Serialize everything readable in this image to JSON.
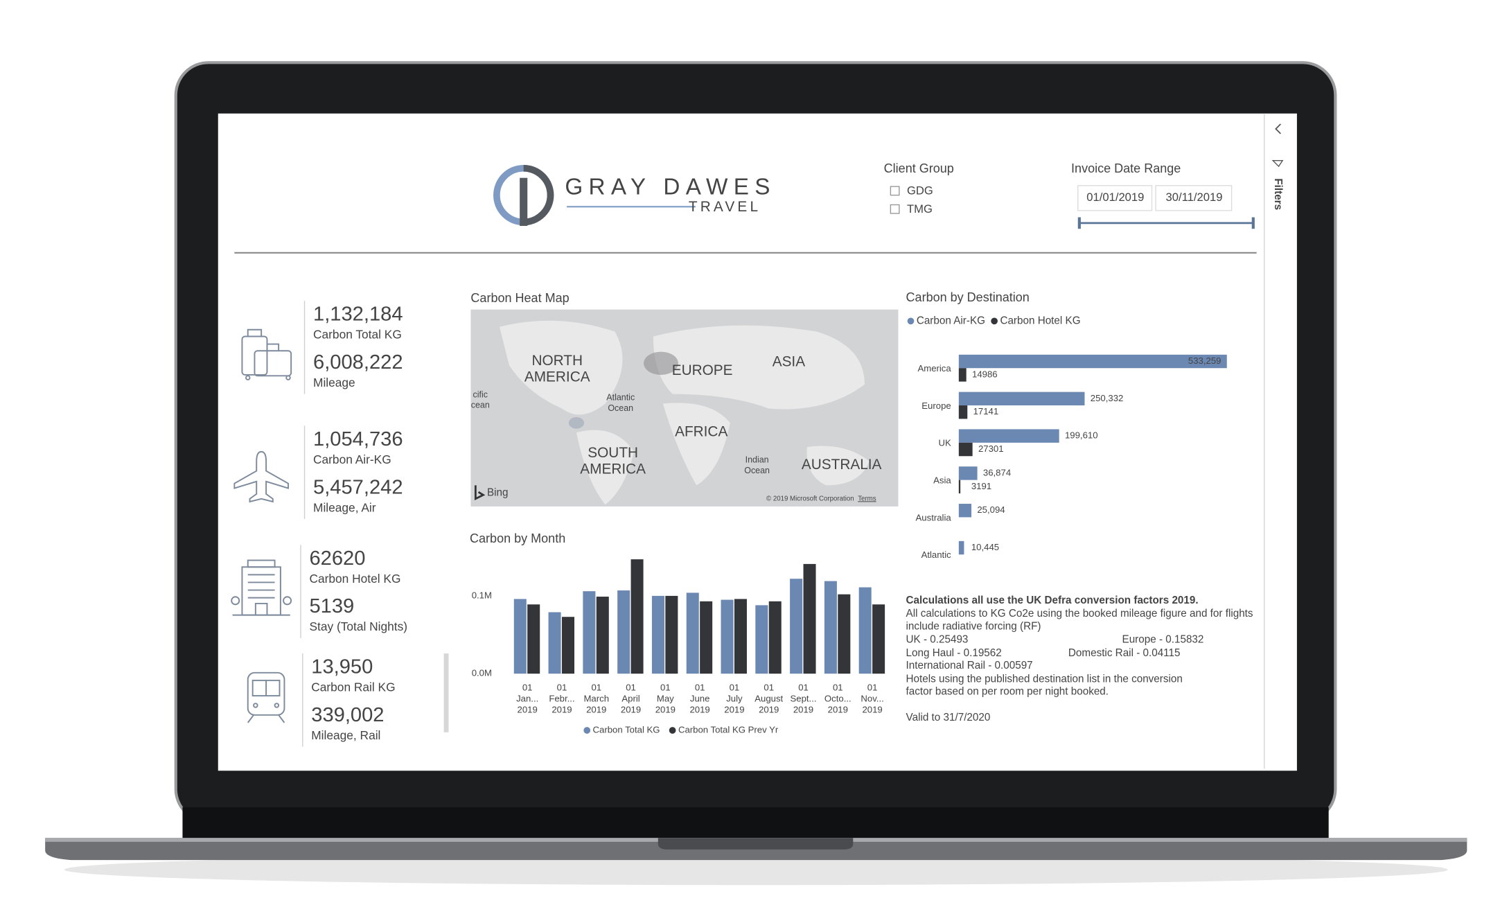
{
  "header": {
    "logo_main": "GRAY DAWES",
    "logo_sub": "TRAVEL",
    "client_group": {
      "title": "Client Group",
      "options": [
        "GDG",
        "TMG"
      ]
    },
    "date_range": {
      "title": "Invoice Date Range",
      "start": "01/01/2019",
      "end": "30/11/2019"
    },
    "filters": "Filters"
  },
  "kpis": [
    {
      "value": "1,132,184",
      "label": "Carbon Total KG",
      "value2": "6,008,222",
      "label2": "Mileage"
    },
    {
      "value": "1,054,736",
      "label": "Carbon Air-KG",
      "value2": "5,457,242",
      "label2": "Mileage, Air"
    },
    {
      "value": "62620",
      "label": "Carbon Hotel KG",
      "value2": "5139",
      "label2": "Stay (Total Nights)"
    },
    {
      "value": "13,950",
      "label": "Carbon Rail KG",
      "value2": "339,002",
      "label2": "Mileage, Rail"
    }
  ],
  "map": {
    "title": "Carbon Heat Map",
    "labels": [
      "NORTH",
      "AMERICA",
      "EUROPE",
      "ASIA",
      "AFRICA",
      "SOUTH",
      "AMERICA",
      "AUSTRALIA",
      "Atlantic",
      "Ocean",
      "Indian",
      "Ocean",
      "cific",
      "cean"
    ],
    "provider": "Bing",
    "copyright": "© 2019 Microsoft Corporation",
    "terms": "Terms"
  },
  "chart_data": [
    {
      "type": "bar",
      "title": "Carbon by Month",
      "categories": [
        [
          "01",
          "Jan...",
          "2019"
        ],
        [
          "01",
          "Febr...",
          "2019"
        ],
        [
          "01",
          "March",
          "2019"
        ],
        [
          "01",
          "April",
          "2019"
        ],
        [
          "01",
          "May",
          "2019"
        ],
        [
          "01",
          "June",
          "2019"
        ],
        [
          "01",
          "July",
          "2019"
        ],
        [
          "01",
          "August",
          "2019"
        ],
        [
          "01",
          "Sept...",
          "2019"
        ],
        [
          "01",
          "Octo...",
          "2019"
        ],
        [
          "01",
          "Nov...",
          "2019"
        ]
      ],
      "series": [
        {
          "name": "Carbon Total KG",
          "color": "#6b88b3",
          "values": [
            96000,
            79000,
            106000,
            107000,
            100000,
            104000,
            95000,
            88000,
            122000,
            119000,
            111000
          ]
        },
        {
          "name": "Carbon Total KG Prev Yr",
          "color": "#333538",
          "values": [
            89000,
            73000,
            99000,
            147000,
            100000,
            93000,
            96000,
            93000,
            141000,
            102000,
            89000
          ]
        }
      ],
      "ylim": [
        0,
        155000
      ],
      "yticks": [
        {
          "value": 0,
          "label": "0.0M"
        },
        {
          "value": 100000,
          "label": "0.1M"
        }
      ],
      "legend": "bottom"
    },
    {
      "type": "barh",
      "title": "Carbon by Destination",
      "categories": [
        "America",
        "Europe",
        "UK",
        "Asia",
        "Australia",
        "Atlantic"
      ],
      "series": [
        {
          "name": "Carbon Air-KG",
          "color": "#6b88b3",
          "values": [
            533259,
            250332,
            199610,
            36874,
            25094,
            10445
          ],
          "value_labels": [
            "533,259",
            "250,332",
            "199,610",
            "36,874",
            "25,094",
            "10,445"
          ]
        },
        {
          "name": "Carbon Hotel KG",
          "color": "#333538",
          "values": [
            14986,
            17141,
            27301,
            3191,
            null,
            null
          ]
        }
      ],
      "xlim": [
        0,
        600000
      ],
      "legend": "top"
    }
  ],
  "notes": {
    "heading": "Calculations all use the UK Defra conversion factors 2019.",
    "lines": [
      "All calculations to KG Co2e using the booked mileage figure and for flights",
      "include radiative forcing (RF)"
    ],
    "factors": [
      [
        "UK - 0.25493",
        "Europe - 0.15832"
      ],
      [
        "Long Haul - 0.19562",
        "Domestic Rail - 0.04115"
      ],
      [
        "International Rail - 0.00597"
      ]
    ],
    "hotel_lines": [
      "Hotels using the published destination list in the conversion",
      "factor based on per room per night booked."
    ],
    "valid": "Valid to 31/7/2020"
  }
}
